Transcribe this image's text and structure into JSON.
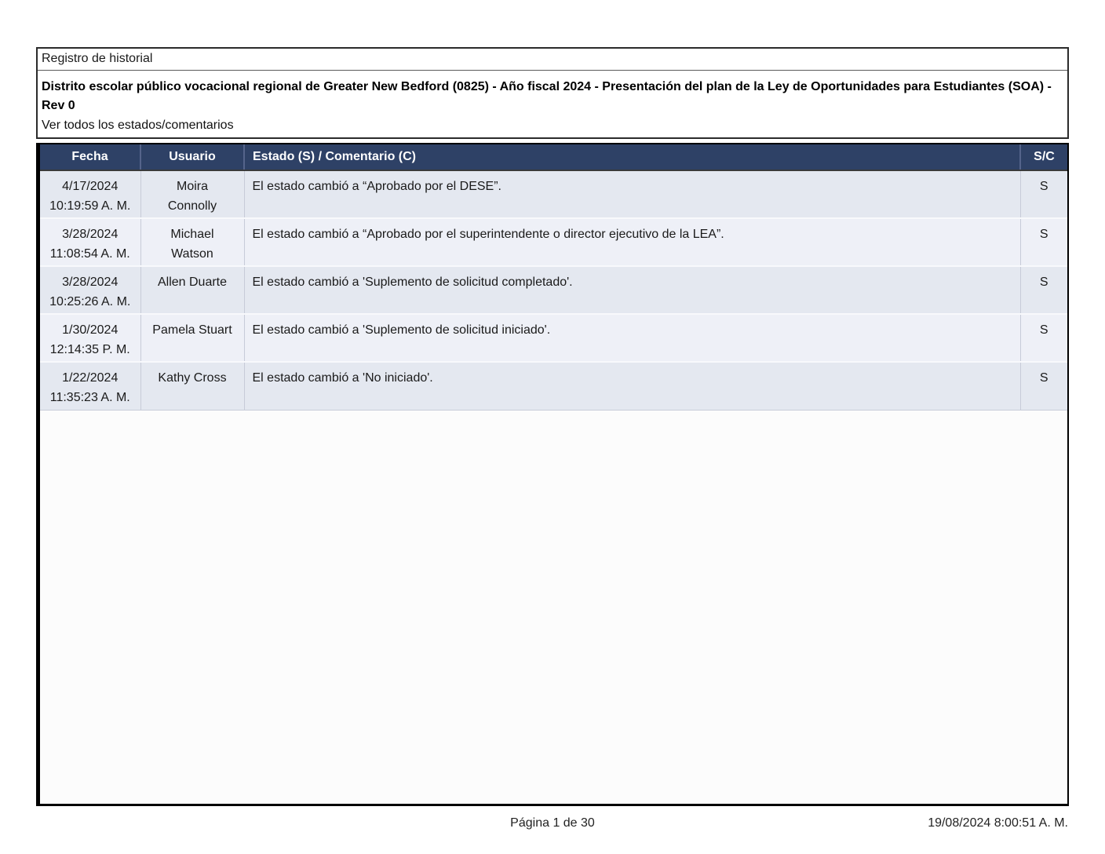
{
  "report": {
    "box_title": "Registro de historial",
    "document_title": "Distrito escolar público vocacional regional de Greater New Bedford (0825) - Año fiscal 2024 - Presentación del plan de la Ley de Oportunidades para Estudiantes (SOA) - Rev 0",
    "view_all_link": "Ver todos los estados/comentarios"
  },
  "table": {
    "headers": {
      "fecha": "Fecha",
      "usuario": "Usuario",
      "estado": "Estado (S) / Comentario (C)",
      "sc": "S/C"
    },
    "rows": [
      {
        "fecha": "4/17/2024\n10:19:59 A. M.",
        "usuario": "Moira\nConnolly",
        "estado": "El estado cambió a “Aprobado por el DESE”.",
        "sc": "S"
      },
      {
        "fecha": "3/28/2024\n11:08:54 A. M.",
        "usuario": "Michael\nWatson",
        "estado": "El estado cambió a “Aprobado por el superintendente o director ejecutivo de la LEA”.",
        "sc": "S"
      },
      {
        "fecha": "3/28/2024\n10:25:26 A. M.",
        "usuario": "Allen Duarte",
        "estado": "El estado cambió a 'Suplemento de solicitud completado'.",
        "sc": "S"
      },
      {
        "fecha": "1/30/2024\n12:14:35 P. M.",
        "usuario": "Pamela Stuart",
        "estado": "El estado cambió a 'Suplemento de solicitud iniciado'.",
        "sc": "S"
      },
      {
        "fecha": "1/22/2024\n11:35:23 A. M.",
        "usuario": "Kathy Cross",
        "estado": "El estado cambió a 'No iniciado'.",
        "sc": "S"
      }
    ]
  },
  "footer": {
    "page_label": "Página 1 de 30",
    "timestamp": "19/08/2024 8:00:51 A. M."
  },
  "colors": {
    "header_bg": "#2E4166",
    "row_light": "#EEF0F7",
    "row_dark": "#E4E8F0",
    "frame_border": "#000000"
  }
}
